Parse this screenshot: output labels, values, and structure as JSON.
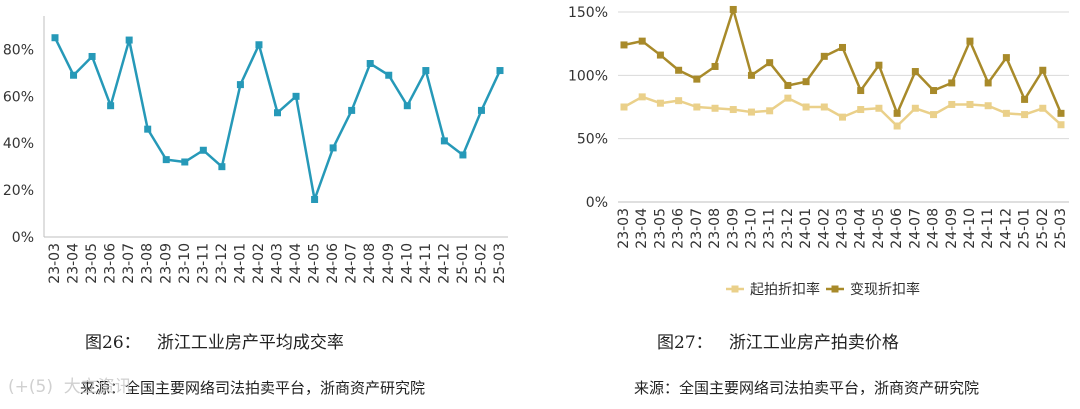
{
  "chart_data": [
    {
      "type": "line",
      "caption": "图26：   浙江工业房产平均成交率",
      "source": "来源：全国主要网络司法拍卖平台，浙商资产研究院",
      "categories": [
        "23-03",
        "23-04",
        "23-05",
        "23-06",
        "23-07",
        "23-08",
        "23-09",
        "23-10",
        "23-11",
        "23-12",
        "24-01",
        "24-02",
        "24-03",
        "24-04",
        "24-05",
        "24-06",
        "24-07",
        "24-08",
        "24-09",
        "24-10",
        "24-11",
        "24-12",
        "25-01",
        "25-02",
        "25-03"
      ],
      "y_ticks": [
        "0%",
        "20%",
        "40%",
        "60%",
        "80%"
      ],
      "ylim": [
        0,
        90
      ],
      "series": [
        {
          "color": "#2699b8",
          "values": [
            85,
            69,
            77,
            56,
            84,
            46,
            33,
            32,
            37,
            30,
            65,
            82,
            53,
            60,
            16,
            38,
            54,
            74,
            69,
            56,
            71,
            41,
            35,
            54,
            71
          ]
        }
      ],
      "grid": false
    },
    {
      "type": "line",
      "caption": "图27：   浙江工业房产拍卖价格",
      "source": "来源：全国主要网络司法拍卖平台，浙商资产研究院",
      "categories": [
        "23-03",
        "23-04",
        "23-05",
        "23-06",
        "23-07",
        "23-08",
        "23-09",
        "23-10",
        "23-11",
        "23-12",
        "24-01",
        "24-02",
        "24-03",
        "24-04",
        "24-05",
        "24-06",
        "24-07",
        "24-08",
        "24-09",
        "24-10",
        "24-11",
        "24-12",
        "25-01",
        "25-02",
        "25-03"
      ],
      "y_ticks": [
        "0%",
        "50%",
        "100%",
        "150%"
      ],
      "ylim": [
        0,
        150
      ],
      "legend_position": "bottom",
      "series": [
        {
          "name": "起拍折扣率",
          "color": "#ead08a",
          "values": [
            75,
            83,
            78,
            80,
            75,
            74,
            73,
            71,
            72,
            82,
            75,
            75,
            67,
            73,
            74,
            60,
            74,
            69,
            77,
            77,
            76,
            70,
            69,
            74,
            61
          ]
        },
        {
          "name": "变现折扣率",
          "color": "#a88a2a",
          "values": [
            124,
            127,
            116,
            104,
            97,
            107,
            152,
            100,
            110,
            92,
            95,
            115,
            122,
            88,
            108,
            70,
            103,
            88,
            94,
            127,
            94,
            114,
            81,
            104,
            70
          ]
        }
      ],
      "grid": true
    }
  ],
  "watermark": "(+(5)  大立资讯"
}
